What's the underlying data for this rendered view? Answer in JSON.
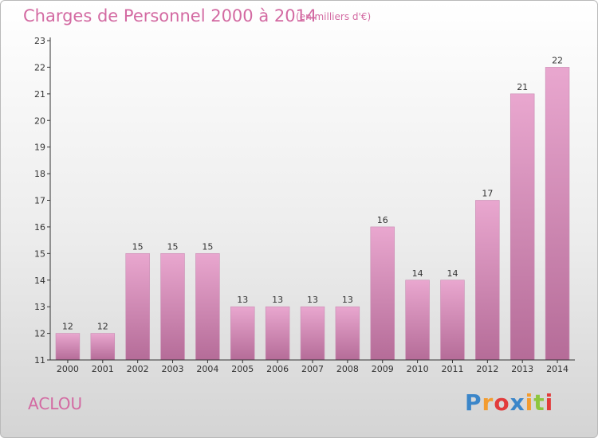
{
  "header": {
    "title": "Charges de Personnel 2000 à 2014",
    "unit": "(en milliers d'€)"
  },
  "footer": {
    "commune": "ACLOU",
    "brand": "Proxiti"
  },
  "colors": {
    "title": "#d36aa2",
    "bar_top": "#e9a7cf",
    "bar_bottom": "#b56c98",
    "bar_edge": "#c98bb3",
    "axis": "#333333",
    "brand_letters": [
      "#3b86c9",
      "#f39c2f",
      "#e23b3b",
      "#3b86c9",
      "#f39c2f",
      "#8dc63f",
      "#e23b3b"
    ]
  },
  "chart_data": {
    "type": "bar",
    "title": "Charges de Personnel 2000 à 2014",
    "subtitle": "(en milliers d'€)",
    "categories": [
      "2000",
      "2001",
      "2002",
      "2003",
      "2004",
      "2005",
      "2006",
      "2007",
      "2008",
      "2009",
      "2010",
      "2011",
      "2012",
      "2013",
      "2014"
    ],
    "values": [
      12,
      12,
      15,
      15,
      15,
      13,
      13,
      13,
      13,
      16,
      14,
      14,
      17,
      21,
      22
    ],
    "ylim": [
      11,
      23
    ],
    "yticks": [
      11,
      12,
      13,
      14,
      15,
      16,
      17,
      18,
      19,
      20,
      21,
      22,
      23
    ],
    "grid": false,
    "legend": "none"
  }
}
